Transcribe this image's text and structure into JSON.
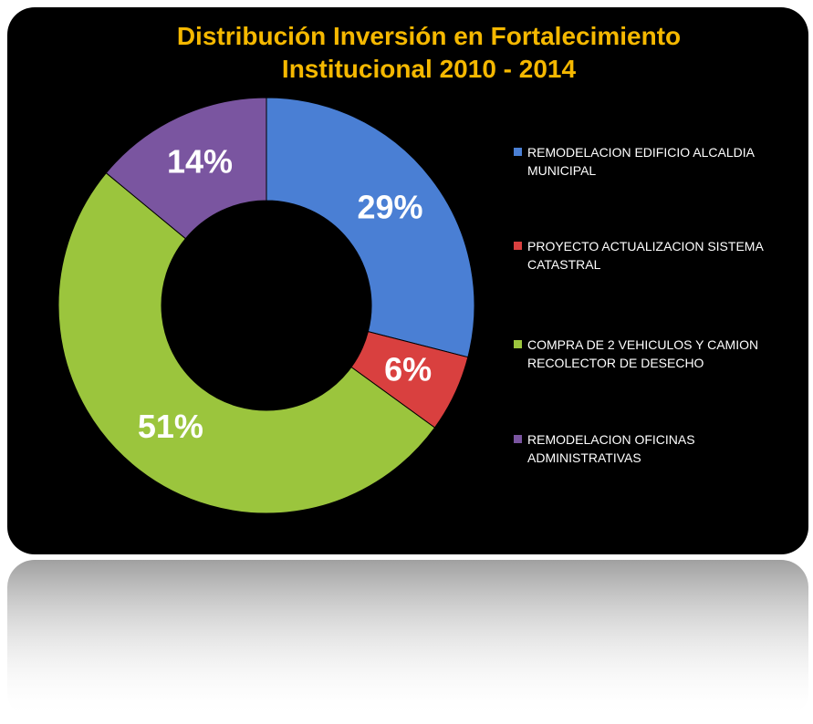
{
  "chart_data": {
    "type": "donut",
    "title": "Distribución Inversión en Fortalecimiento Institucional 2010 - 2014",
    "categories": [
      "REMODELACION EDIFICIO ALCALDIA MUNICIPAL",
      "PROYECTO ACTUALIZACION SISTEMA CATASTRAL",
      "COMPRA DE 2  VEHICULOS Y CAMION RECOLECTOR DE DESECHO",
      "REMODELACION OFICINAS ADMINISTRATIVAS"
    ],
    "values": [
      29,
      6,
      51,
      14
    ],
    "value_labels": [
      "29%",
      "6%",
      "51%",
      "14%"
    ],
    "colors": [
      "#4a7fd4",
      "#d9403f",
      "#9bc53d",
      "#7a55a0"
    ],
    "legend": "right"
  }
}
